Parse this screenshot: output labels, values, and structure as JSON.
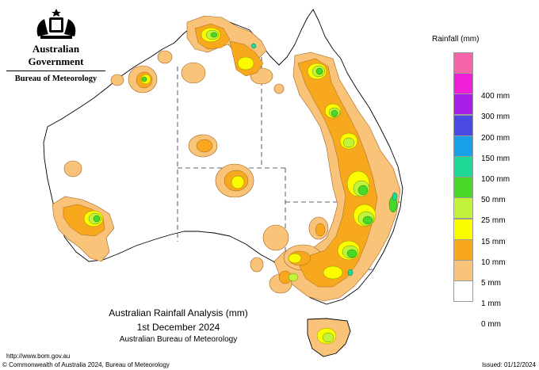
{
  "header": {
    "government": "Australian Government",
    "bureau": "Bureau of Meteorology"
  },
  "legend": {
    "title": "Rainfall (mm)",
    "items": [
      {
        "label": "",
        "color": "#f564a8"
      },
      {
        "label": "400 mm",
        "color": "#ee1ed9"
      },
      {
        "label": "300 mm",
        "color": "#a81ee8"
      },
      {
        "label": "200 mm",
        "color": "#4a4ae2"
      },
      {
        "label": "150 mm",
        "color": "#189fe8"
      },
      {
        "label": "100 mm",
        "color": "#1ed895"
      },
      {
        "label": "50 mm",
        "color": "#48d828"
      },
      {
        "label": "25 mm",
        "color": "#c3f23a"
      },
      {
        "label": "15 mm",
        "color": "#fcfc00"
      },
      {
        "label": "10 mm",
        "color": "#f7a81c"
      },
      {
        "label": "5 mm",
        "color": "#f9c47a"
      },
      {
        "label": "1 mm",
        "color": "#ffffff"
      },
      {
        "label": "0 mm",
        "color": ""
      }
    ]
  },
  "caption": {
    "title": "Australian Rainfall Analysis (mm)",
    "date": "1st December 2024",
    "organisation": "Australian Bureau of Meteorology"
  },
  "footer": {
    "url": "http://www.bom.gov.au",
    "copyright": "© Commonwealth of Australia 2024, Bureau of Meteorology",
    "issued": "Issued: 01/12/2024"
  }
}
